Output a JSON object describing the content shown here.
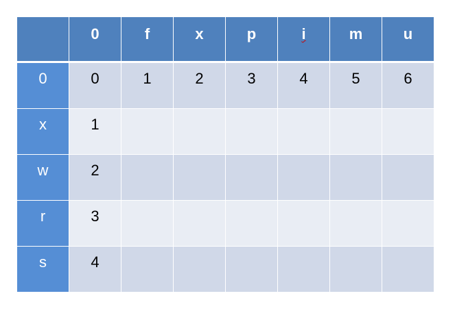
{
  "table": {
    "header": [
      "",
      "0",
      "f",
      "x",
      "p",
      "i",
      "m",
      "u"
    ],
    "rows": [
      {
        "label": "0",
        "cells": [
          "0",
          "1",
          "2",
          "3",
          "4",
          "5",
          "6"
        ]
      },
      {
        "label": "x",
        "cells": [
          "1",
          "",
          "",
          "",
          "",
          "",
          ""
        ]
      },
      {
        "label": "w",
        "cells": [
          "2",
          "",
          "",
          "",
          "",
          "",
          ""
        ]
      },
      {
        "label": "r",
        "cells": [
          "3",
          "",
          "",
          "",
          "",
          "",
          ""
        ]
      },
      {
        "label": "s",
        "cells": [
          "4",
          "",
          "",
          "",
          "",
          "",
          ""
        ]
      }
    ]
  },
  "colors": {
    "header": "#4F81BD",
    "row_header": "#558ED5",
    "band_dark": "#D0D8E8",
    "band_light": "#E9EDF4"
  }
}
